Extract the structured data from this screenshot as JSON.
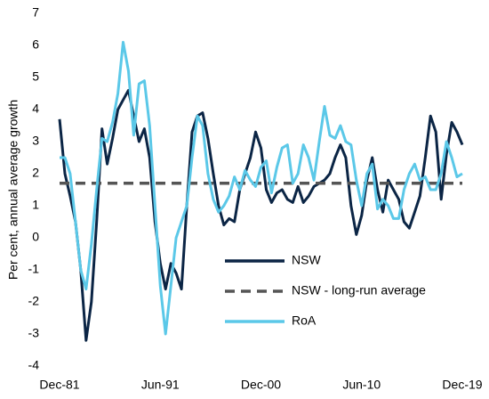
{
  "chart_data": {
    "type": "line",
    "y_label": "Per cent, annual average growth",
    "categories": [
      "Dec-81",
      null,
      null,
      null,
      null,
      null,
      null,
      null,
      null,
      null,
      null,
      null,
      null,
      null,
      null,
      null,
      null,
      null,
      null,
      "Jun-91",
      null,
      null,
      null,
      null,
      null,
      null,
      null,
      null,
      null,
      null,
      null,
      null,
      null,
      null,
      null,
      null,
      null,
      null,
      "Dec-00",
      null,
      null,
      null,
      null,
      null,
      null,
      null,
      null,
      null,
      null,
      null,
      null,
      null,
      null,
      null,
      null,
      null,
      null,
      "Jun-10",
      null,
      null,
      null,
      null,
      null,
      null,
      null,
      null,
      null,
      null,
      null,
      null,
      null,
      null,
      null,
      null,
      null,
      null,
      "Dec-19"
    ],
    "series": [
      {
        "name": "NSW",
        "color": "#0b2545",
        "values": [
          3.7,
          2.0,
          1.3,
          0.5,
          -1.0,
          -3.2,
          -2.0,
          0.5,
          3.4,
          2.3,
          3.1,
          4.0,
          4.3,
          4.6,
          3.8,
          3.0,
          3.4,
          2.5,
          0.5,
          -0.8,
          -1.6,
          -0.8,
          -1.1,
          -1.6,
          1.0,
          3.3,
          3.8,
          3.9,
          3.1,
          2.0,
          1.0,
          0.4,
          0.6,
          0.5,
          1.5,
          2.0,
          2.5,
          3.3,
          2.8,
          1.5,
          1.1,
          1.4,
          1.5,
          1.2,
          1.1,
          1.6,
          1.1,
          1.3,
          1.6,
          1.7,
          1.8,
          2.0,
          2.5,
          2.9,
          2.5,
          1.0,
          0.1,
          0.7,
          1.8,
          2.5,
          1.5,
          0.8,
          1.8,
          1.5,
          1.2,
          0.5,
          0.3,
          0.8,
          1.3,
          2.5,
          3.8,
          3.3,
          1.2,
          2.6,
          3.6,
          3.3,
          2.9
        ]
      },
      {
        "name": "NSW - long-run average",
        "color": "#555555",
        "dashed": true,
        "hline": 1.7
      },
      {
        "name": "RoA",
        "color": "#5bc8e8",
        "values": [
          2.5,
          2.5,
          2.0,
          0.5,
          -1.0,
          -1.6,
          -0.2,
          1.5,
          3.1,
          3.0,
          3.6,
          4.5,
          6.1,
          5.2,
          3.2,
          4.8,
          4.9,
          3.5,
          1.0,
          -1.5,
          -3.0,
          -1.5,
          0.0,
          0.5,
          1.0,
          2.5,
          3.8,
          3.5,
          2.0,
          1.2,
          0.8,
          1.0,
          1.3,
          1.9,
          1.5,
          2.1,
          1.8,
          1.6,
          2.2,
          2.4,
          1.4,
          2.2,
          2.8,
          2.9,
          1.7,
          2.0,
          2.9,
          2.5,
          1.8,
          3.0,
          4.1,
          3.2,
          3.1,
          3.5,
          3.0,
          2.9,
          1.8,
          1.0,
          2.0,
          2.3,
          0.9,
          1.2,
          1.0,
          0.6,
          0.6,
          1.5,
          2.0,
          2.3,
          1.8,
          1.9,
          1.5,
          1.5,
          2.0,
          3.0,
          2.5,
          1.9,
          2.0
        ]
      }
    ],
    "ylim": [
      -4,
      7
    ],
    "yticks": [
      -4,
      -3,
      -2,
      -1,
      0,
      1,
      2,
      3,
      4,
      5,
      6,
      7
    ],
    "grid": false
  }
}
